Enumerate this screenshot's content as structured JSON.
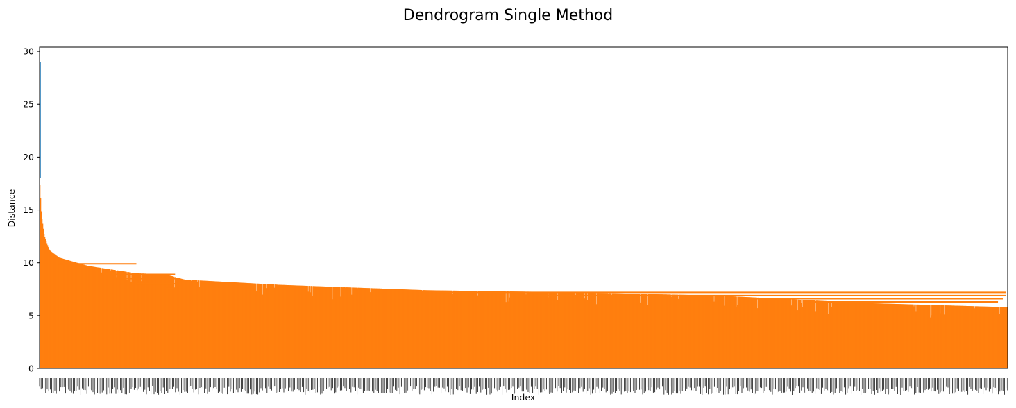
{
  "chart_data": {
    "type": "dendrogram",
    "title": "Dendrogram Single Method",
    "xlabel": "Index",
    "ylabel": "Distance",
    "ylim": [
      0,
      30.4
    ],
    "y_ticks": [
      0,
      5,
      10,
      15,
      20,
      25,
      30
    ],
    "grid": false,
    "legend": "none",
    "colors": {
      "cluster": "#ff7f0e",
      "root": "#1f77b4"
    },
    "leaf_count_estimate": 1400,
    "root_merge_height": 29.0,
    "series": [
      {
        "x": [
          0.0,
          0.002,
          0.005,
          0.01,
          0.02,
          0.05,
          0.1,
          0.13,
          0.15,
          0.25,
          0.4,
          0.55,
          0.7,
          0.85,
          1.0
        ],
        "values": [
          18.0,
          14.5,
          12.5,
          11.2,
          10.5,
          9.7,
          9.0,
          8.9,
          8.4,
          7.9,
          7.4,
          7.2,
          6.9,
          6.2,
          5.8
        ]
      }
    ],
    "horizontal_links": [
      {
        "x": [
          0.02,
          0.1
        ],
        "y": 9.9
      },
      {
        "x": [
          0.065,
          0.14
        ],
        "y": 8.9
      },
      {
        "x": [
          0.085,
          0.14
        ],
        "y": 8.5
      },
      {
        "x": [
          0.1,
          0.14
        ],
        "y": 8.0
      },
      {
        "x": [
          0.13,
          0.14
        ],
        "y": 7.6
      },
      {
        "x": [
          0.41,
          0.998
        ],
        "y": 7.2
      },
      {
        "x": [
          0.51,
          0.998
        ],
        "y": 6.9
      },
      {
        "x": [
          0.73,
          0.995
        ],
        "y": 6.6
      },
      {
        "x": [
          0.8,
          0.99
        ],
        "y": 6.3
      }
    ]
  }
}
